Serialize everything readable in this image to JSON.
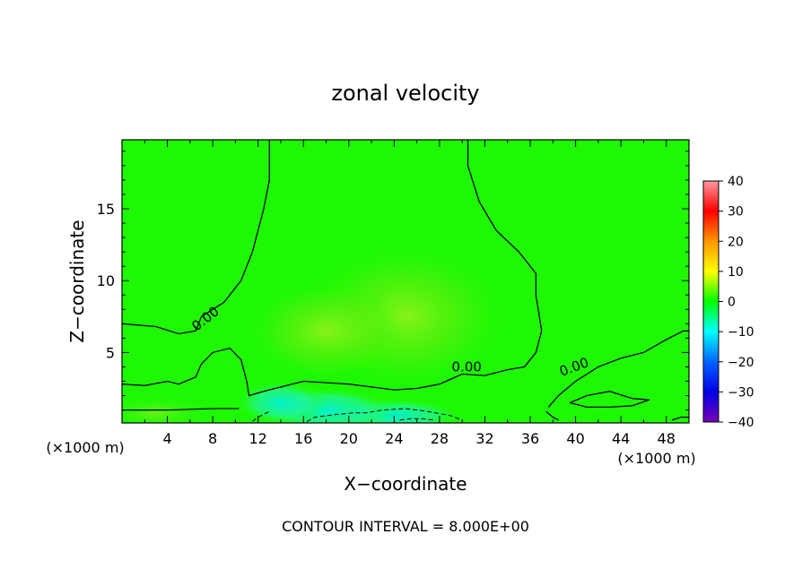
{
  "chart_data": {
    "type": "heatmap",
    "title": "zonal velocity",
    "xlabel": "X−coordinate",
    "ylabel": "Z−coordinate",
    "x_unit_left": "(×1000 m)",
    "x_unit_right": "(×1000 m)",
    "footer": "CONTOUR INTERVAL = 8.000E+00",
    "contour_interval": 8.0,
    "xlim": [
      0,
      50
    ],
    "ylim": [
      0.1,
      19.8
    ],
    "x_ticks": [
      4,
      8,
      12,
      16,
      20,
      24,
      28,
      32,
      36,
      40,
      44,
      48
    ],
    "y_ticks": [
      5,
      10,
      15
    ],
    "colorbar": {
      "range": [
        -40,
        40
      ],
      "ticks": [
        40,
        30,
        20,
        10,
        0,
        -10,
        -20,
        -30,
        -40
      ],
      "tick_labels": [
        "40",
        "30",
        "20",
        "10",
        "0",
        "−10",
        "−20",
        "−30",
        "−40"
      ],
      "stops": [
        {
          "value": -40,
          "color": "#7a00b4"
        },
        {
          "value": -30,
          "color": "#0000e6"
        },
        {
          "value": -20,
          "color": "#0064ff"
        },
        {
          "value": -10,
          "color": "#00ffff"
        },
        {
          "value": 0,
          "color": "#00ff00"
        },
        {
          "value": 10,
          "color": "#ffff00"
        },
        {
          "value": 20,
          "color": "#ff9600"
        },
        {
          "value": 30,
          "color": "#ff0000"
        },
        {
          "value": 40,
          "color": "#ff9aa0"
        }
      ]
    },
    "field": [
      {
        "x": 25,
        "z": 7.5,
        "value": 5.5
      },
      {
        "x": 18,
        "z": 6.5,
        "value": 3.5
      },
      {
        "x": 24,
        "z": 0.6,
        "value": -7
      },
      {
        "x": 18,
        "z": 1.0,
        "value": -5
      },
      {
        "x": 14,
        "z": 1.5,
        "value": -3
      },
      {
        "x": 3,
        "z": 0.8,
        "value": 3
      }
    ],
    "contour_labels": [
      {
        "text": "0.00",
        "x": 7.6,
        "z": 7.1
      },
      {
        "text": "0.00",
        "x": 30.4,
        "z": 3.7
      },
      {
        "text": "0.00",
        "x": 40.0,
        "z": 3.7
      }
    ],
    "zero_contours": [
      [
        [
          13,
          19.8
        ],
        [
          13,
          17
        ],
        [
          12.5,
          15
        ],
        [
          11.5,
          12
        ],
        [
          10.5,
          10
        ],
        [
          9,
          8.5
        ],
        [
          7,
          7.5
        ],
        [
          6.5,
          6.5
        ],
        [
          5,
          6.3
        ],
        [
          3,
          6.8
        ],
        [
          0,
          7
        ]
      ],
      [
        [
          30.5,
          19.8
        ],
        [
          30.5,
          18
        ],
        [
          31.5,
          15.5
        ],
        [
          33,
          13.5
        ],
        [
          35,
          12
        ],
        [
          36.5,
          10.5
        ],
        [
          36.5,
          9
        ],
        [
          37,
          6.5
        ],
        [
          36.5,
          5
        ],
        [
          35.5,
          4
        ],
        [
          34,
          3.8
        ],
        [
          32,
          3.4
        ],
        [
          30,
          3.5
        ],
        [
          28,
          2.8
        ],
        [
          26,
          2.5
        ],
        [
          24,
          2.4
        ],
        [
          22,
          2.6
        ],
        [
          20,
          2.8
        ],
        [
          18,
          2.9
        ],
        [
          16,
          3.0
        ],
        [
          14,
          2.6
        ],
        [
          12.5,
          2.3
        ],
        [
          11.2,
          2.0
        ],
        [
          11,
          3
        ],
        [
          10.5,
          4.5
        ],
        [
          9.5,
          5.3
        ],
        [
          8,
          5.0
        ],
        [
          7,
          4.2
        ],
        [
          6.5,
          3.3
        ],
        [
          5,
          2.8
        ],
        [
          4,
          3.0
        ],
        [
          2,
          2.7
        ],
        [
          0,
          2.8
        ]
      ],
      [
        [
          0,
          1.0
        ],
        [
          4,
          1.0
        ],
        [
          8,
          1.1
        ],
        [
          10.3,
          1.1
        ]
      ],
      [
        [
          37.6,
          1.2
        ],
        [
          38.5,
          2.0
        ],
        [
          40,
          3.0
        ],
        [
          42,
          4.0
        ],
        [
          44,
          4.6
        ],
        [
          46,
          5.0
        ],
        [
          48,
          5.9
        ],
        [
          49.5,
          6.5
        ],
        [
          50,
          6.5
        ]
      ],
      [
        [
          39.5,
          1.5
        ],
        [
          41,
          2.0
        ],
        [
          43,
          2.3
        ],
        [
          45,
          1.8
        ],
        [
          46.5,
          1.7
        ],
        [
          45,
          1.3
        ],
        [
          43,
          1.2
        ],
        [
          41,
          1.2
        ],
        [
          39.5,
          1.5
        ]
      ],
      [
        [
          37.4,
          0.9
        ],
        [
          38,
          0.5
        ],
        [
          38.5,
          0.3
        ]
      ],
      [
        [
          48.5,
          0.3
        ],
        [
          49.3,
          0.5
        ],
        [
          50,
          0.5
        ]
      ]
    ],
    "negative_contours": [
      [
        [
          16.3,
          0.2
        ],
        [
          17,
          0.5
        ],
        [
          19,
          0.7
        ],
        [
          20.5,
          0.8
        ],
        [
          21.5,
          0.8
        ],
        [
          23,
          1.0
        ],
        [
          25,
          1.1
        ],
        [
          27,
          0.9
        ],
        [
          29,
          0.6
        ],
        [
          30,
          0.3
        ]
      ],
      [
        [
          24.5,
          0.3
        ],
        [
          25.5,
          0.4
        ],
        [
          26.5,
          0.4
        ],
        [
          27.5,
          0.3
        ]
      ],
      [
        [
          11.5,
          0.2
        ],
        [
          12,
          0.5
        ],
        [
          12.5,
          0.7
        ],
        [
          13,
          0.9
        ]
      ]
    ]
  }
}
